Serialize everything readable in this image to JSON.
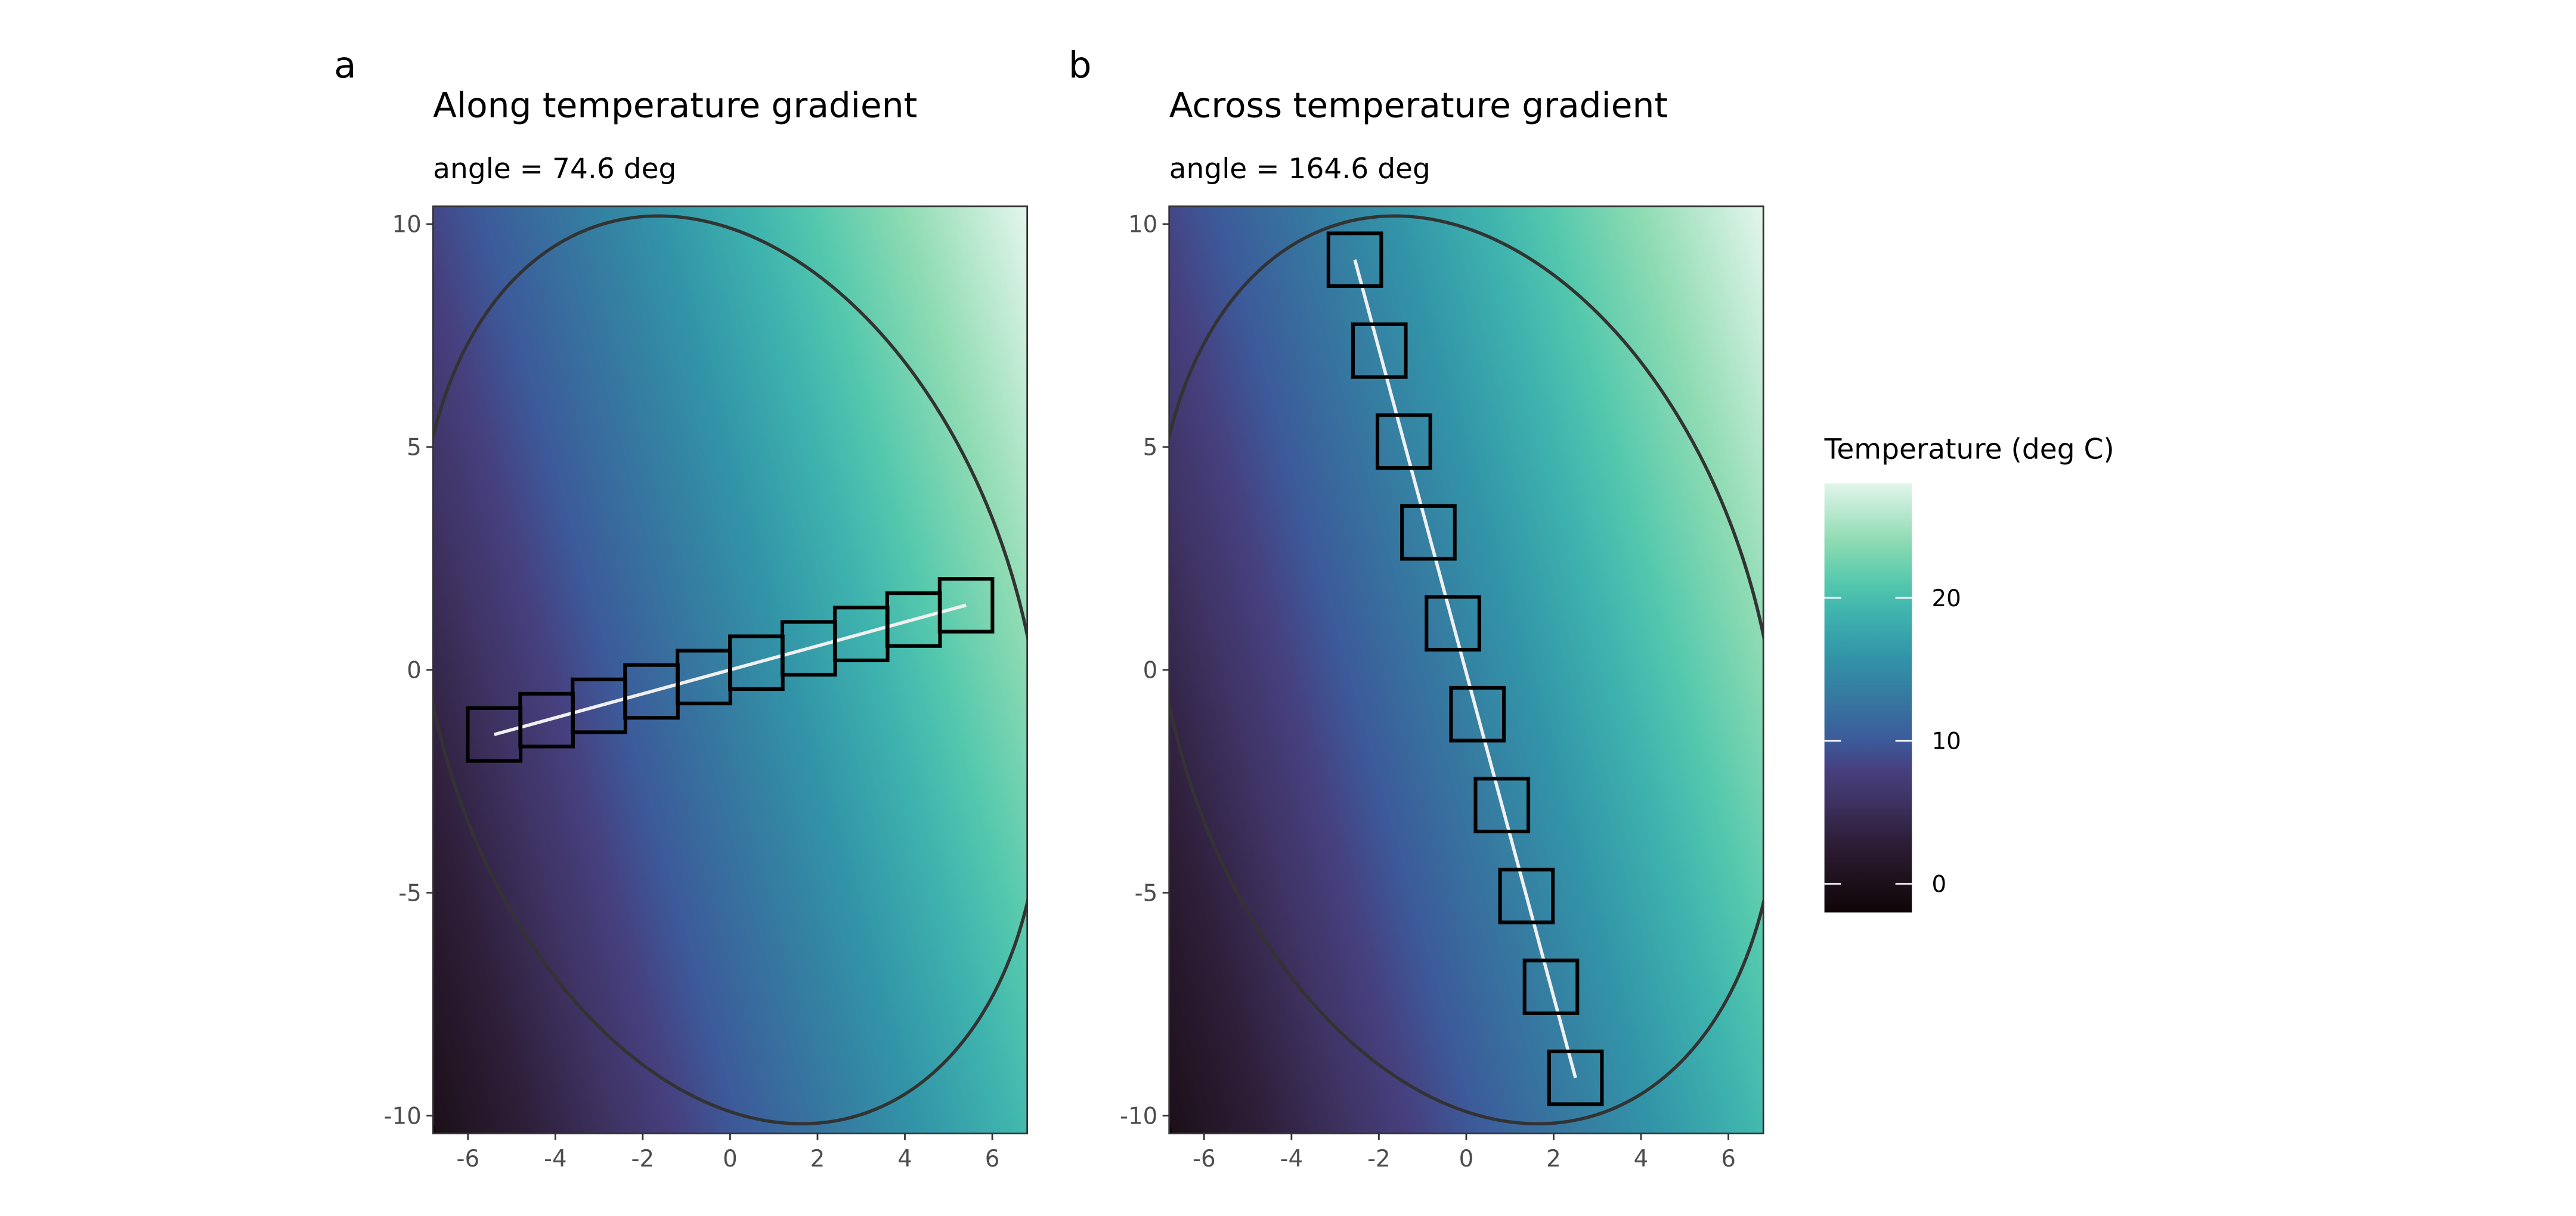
{
  "chart_data": {
    "type": "heatmap",
    "panels": [
      {
        "tag": "a",
        "title": "Along temperature gradient",
        "subtitle": "angle = 74.6 deg",
        "transect": {
          "start": [
            -5.4,
            -1.45
          ],
          "end": [
            5.4,
            1.45
          ],
          "n_boxes": 10
        },
        "ellipse": {
          "center": [
            0,
            0
          ],
          "semi_major": 10.4,
          "semi_minor": 6.8,
          "tilt_deg": 15.4
        }
      },
      {
        "tag": "b",
        "title": "Across temperature gradient",
        "subtitle": "angle = 164.6 deg",
        "transect": {
          "start": [
            -2.55,
            9.2
          ],
          "end": [
            2.5,
            -9.15
          ],
          "n_boxes": 10
        },
        "ellipse": {
          "center": [
            0,
            0
          ],
          "semi_major": 10.4,
          "semi_minor": 6.8,
          "tilt_deg": 15.4
        }
      }
    ],
    "xlim": [
      -6.8,
      6.8
    ],
    "ylim": [
      -10.4,
      10.4
    ],
    "x_ticks": [
      -6,
      -4,
      -2,
      0,
      2,
      4,
      6
    ],
    "x_tick_labels": [
      "-6",
      "-4",
      "-2",
      "0",
      "2",
      "4",
      "6"
    ],
    "y_ticks": [
      -10,
      -5,
      0,
      5,
      10
    ],
    "y_tick_labels": [
      "-10",
      "-5",
      "0",
      "5",
      "10"
    ],
    "field": {
      "gradient_angle_deg": 74.6,
      "range": [
        0,
        28
      ]
    },
    "legend": {
      "title": "Temperature (deg C)",
      "range": [
        -2,
        28
      ],
      "ticks": [
        0,
        10,
        20
      ],
      "tick_labels": [
        "0",
        "10",
        "20"
      ],
      "placement": "right"
    },
    "colormap": [
      [
        -2,
        "#0f0508"
      ],
      [
        0,
        "#1c1019"
      ],
      [
        3,
        "#2e1e38"
      ],
      [
        6,
        "#3f3465"
      ],
      [
        8,
        "#46407f"
      ],
      [
        10,
        "#3c5a9a"
      ],
      [
        13,
        "#3678a0"
      ],
      [
        16,
        "#3295a8"
      ],
      [
        19,
        "#3fb4ae"
      ],
      [
        21,
        "#54c8ad"
      ],
      [
        24,
        "#8edbb3"
      ],
      [
        28,
        "#e2f5ea"
      ]
    ],
    "colors": {
      "ellipse": "#333333",
      "boxes": "#000000",
      "transect_line": "#f0f0f0",
      "panel_border": "#333333"
    }
  }
}
